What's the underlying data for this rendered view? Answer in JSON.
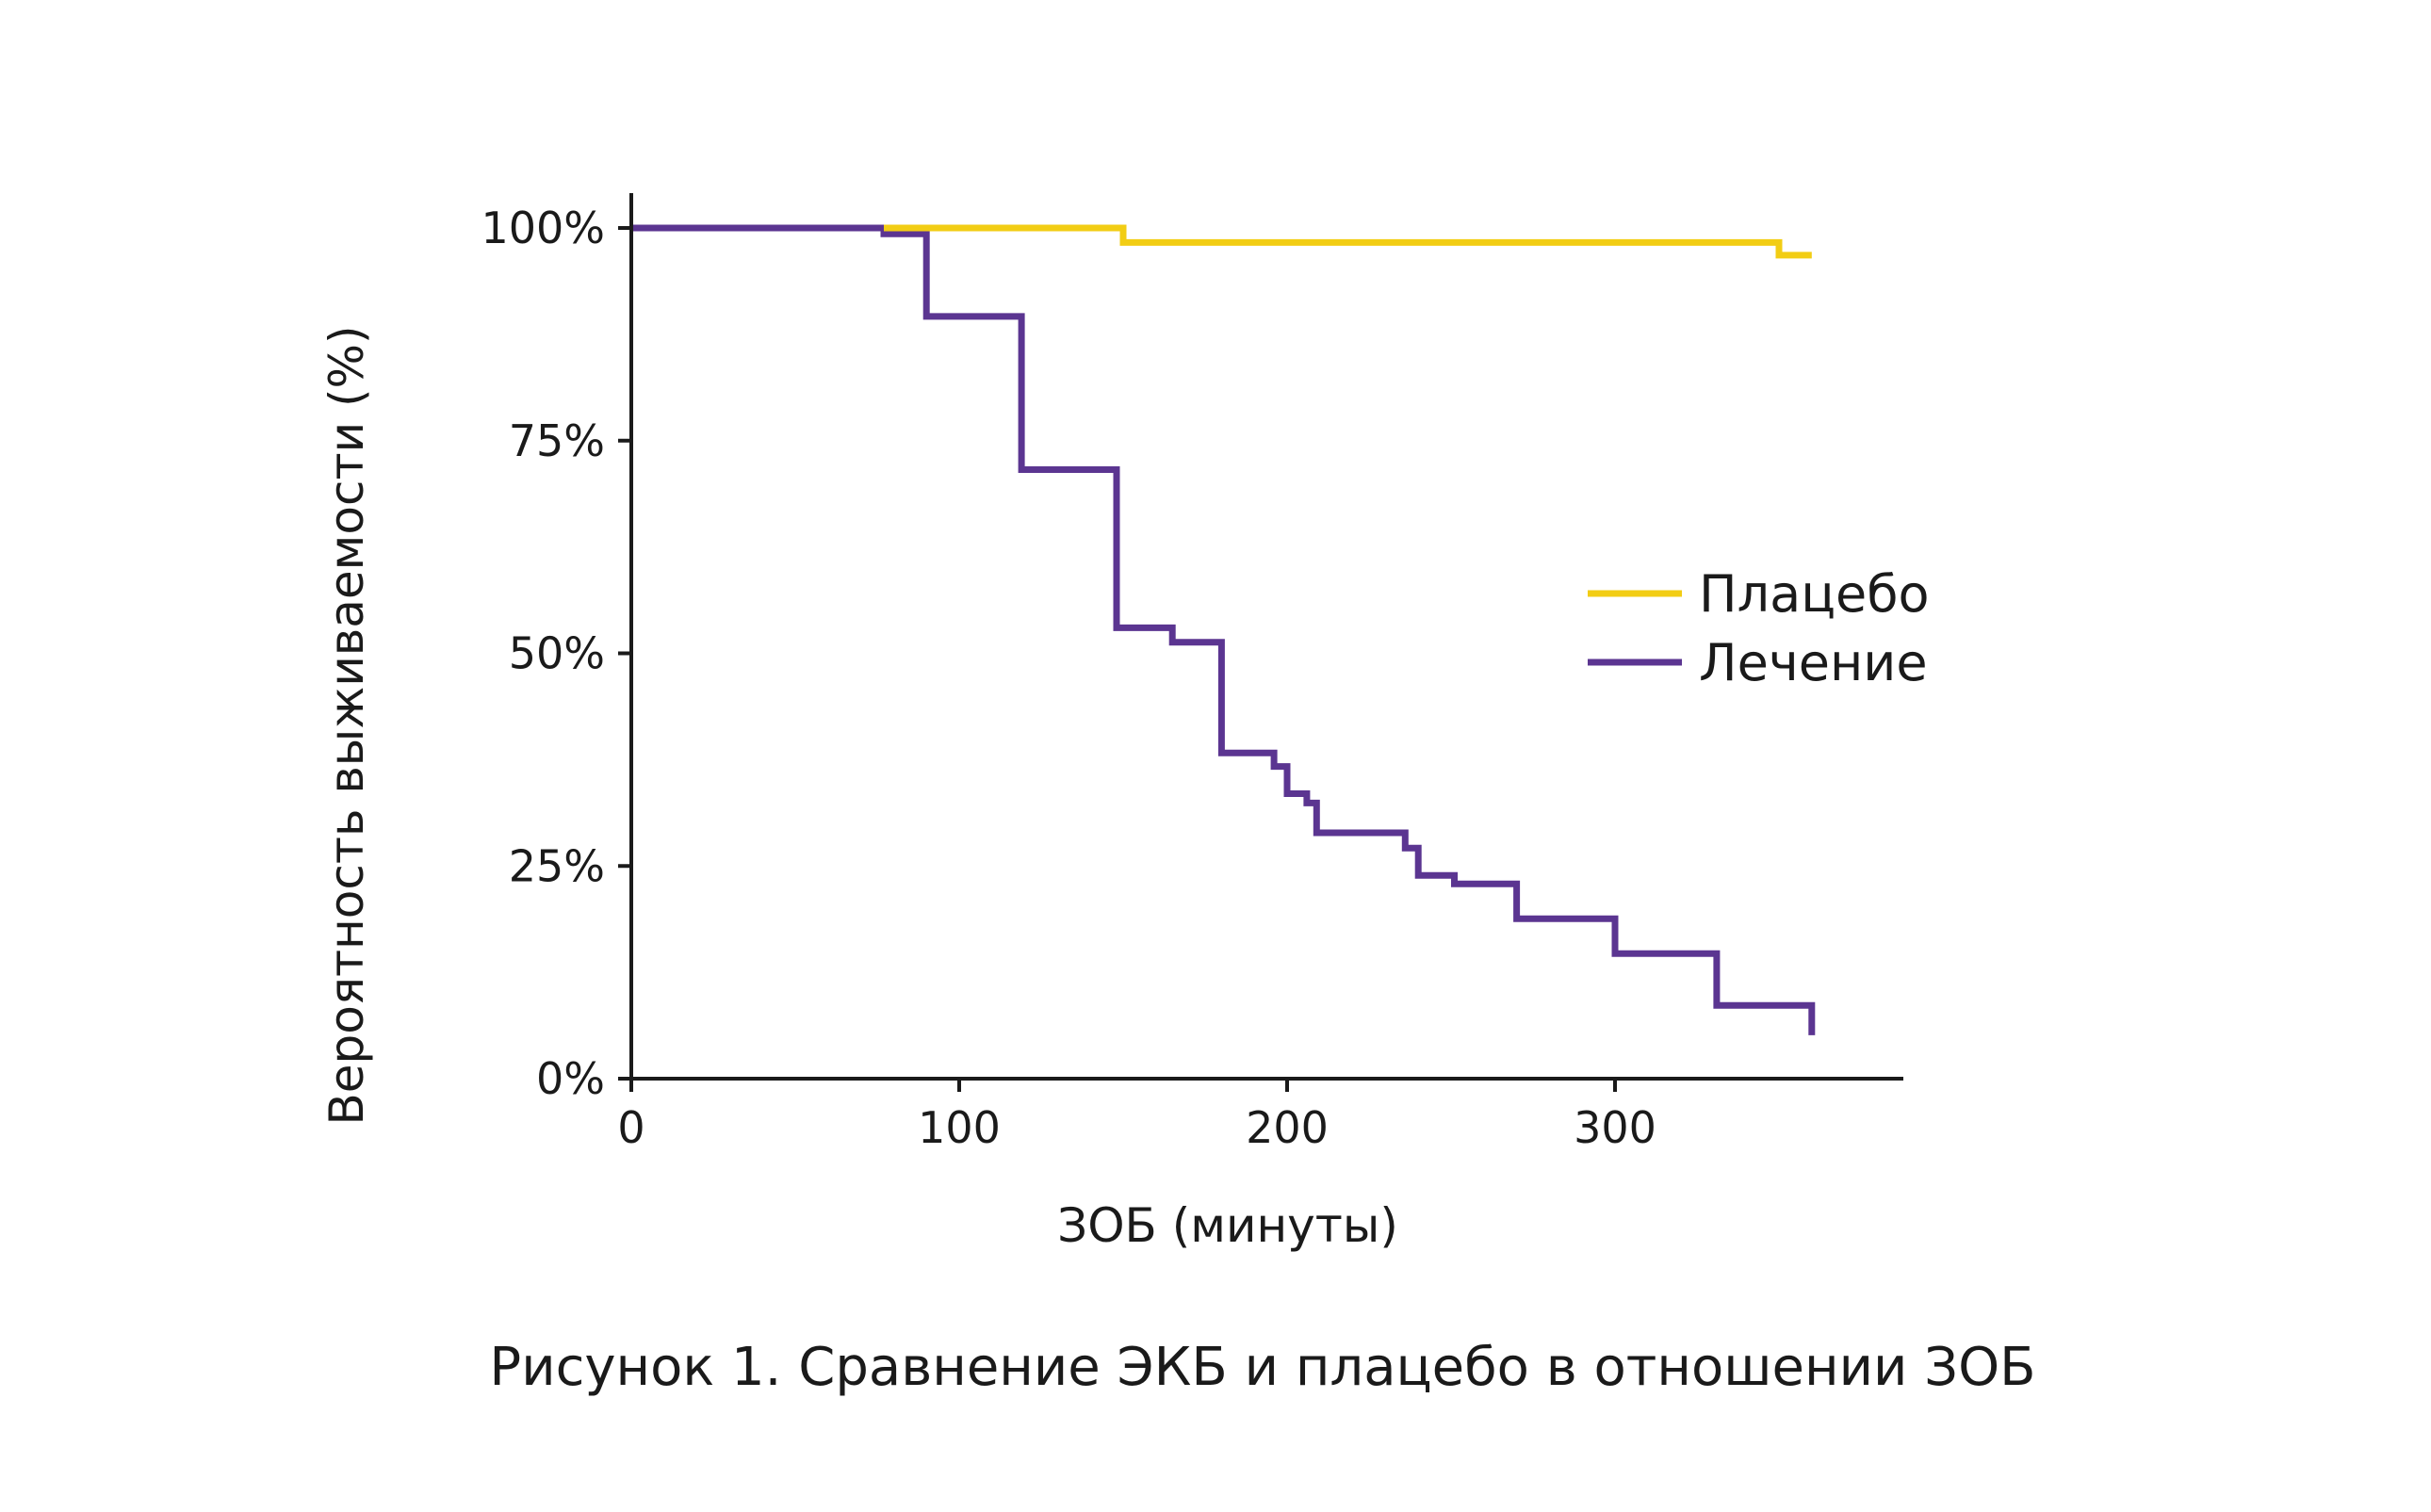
{
  "chart_data": {
    "type": "line",
    "step": true,
    "title": "",
    "caption": "Рисунок 1. Сравнение ЭКБ и плацебо в отношении ЗОБ",
    "xlabel": "ЗОБ (минуты)",
    "ylabel": "Вероятность выживаемости (%)",
    "xlim": [
      0,
      388
    ],
    "ylim": [
      0,
      100
    ],
    "x_ticks": [
      0,
      100,
      200,
      300
    ],
    "x_tick_labels": [
      "0",
      "100",
      "200",
      "300"
    ],
    "y_ticks": [
      0,
      25,
      50,
      75,
      100
    ],
    "y_tick_labels": [
      "0%",
      "25%",
      "50%",
      "75%",
      "100%"
    ],
    "grid": false,
    "legend_position": "right",
    "series": [
      {
        "name": "Плацебо",
        "color": "#f2cd14",
        "x": [
          77,
          150,
          150,
          350,
          350,
          360
        ],
        "y": [
          100,
          100,
          98.3,
          98.3,
          96.8,
          96.8
        ]
      },
      {
        "name": "Лечение",
        "color": "#5b3591",
        "x": [
          0,
          77,
          77,
          90,
          90,
          119,
          119,
          148,
          148,
          165,
          165,
          180,
          180,
          196,
          196,
          200,
          200,
          206,
          206,
          209,
          209,
          236,
          236,
          240,
          240,
          251,
          251,
          270,
          270,
          300,
          300,
          331,
          331,
          360,
          360
        ],
        "y": [
          100,
          100,
          99.3,
          99.3,
          89.6,
          89.6,
          71.6,
          71.6,
          53,
          53,
          51.3,
          51.3,
          38.3,
          38.3,
          36.7,
          36.7,
          33.5,
          33.5,
          32.4,
          32.4,
          28.9,
          28.9,
          27.1,
          27.1,
          23.9,
          23.9,
          22.9,
          22.9,
          18.8,
          18.8,
          14.7,
          14.7,
          8.6,
          8.6,
          5.1
        ]
      }
    ]
  }
}
